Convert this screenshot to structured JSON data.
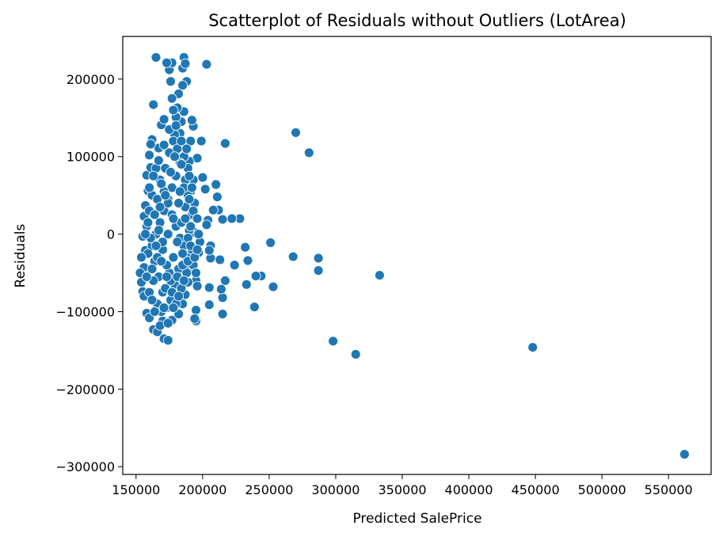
{
  "chart_data": {
    "type": "scatter",
    "title": "Scatterplot of Residuals without Outliers (LotArea)",
    "xlabel": "Predicted SalePrice",
    "ylabel": "Residuals",
    "xlim": [
      140000,
      582000
    ],
    "ylim": [
      -310000,
      255000
    ],
    "xticks": [
      150000,
      200000,
      250000,
      300000,
      350000,
      400000,
      450000,
      500000,
      550000
    ],
    "yticks": [
      -300000,
      -200000,
      -100000,
      0,
      100000,
      200000
    ],
    "xtick_labels": [
      "150000",
      "200000",
      "250000",
      "300000",
      "350000",
      "400000",
      "450000",
      "500000",
      "550000"
    ],
    "ytick_labels": [
      "−300000",
      "−200000",
      "−100000",
      "0",
      "100000",
      "200000"
    ],
    "grid": false,
    "point_color": "#1f77b4",
    "point_edge_color": "#ffffff",
    "points": [
      [
        562000,
        -284000
      ],
      [
        448000,
        -146000
      ],
      [
        333000,
        -53000
      ],
      [
        315000,
        -155000
      ],
      [
        298000,
        -138000
      ],
      [
        287000,
        -31000
      ],
      [
        287000,
        -47000
      ],
      [
        280000,
        105000
      ],
      [
        270000,
        131000
      ],
      [
        268000,
        -29000
      ],
      [
        253000,
        -68000
      ],
      [
        251000,
        -11000
      ],
      [
        244000,
        -54000
      ],
      [
        240000,
        -54000
      ],
      [
        239000,
        -94000
      ],
      [
        234000,
        -34000
      ],
      [
        233000,
        -65000
      ],
      [
        232000,
        -17000
      ],
      [
        228000,
        20000
      ],
      [
        222000,
        20000
      ],
      [
        224000,
        -40000
      ],
      [
        217000,
        117000
      ],
      [
        217000,
        -60000
      ],
      [
        215000,
        19000
      ],
      [
        215000,
        -82000
      ],
      [
        215000,
        -103000
      ],
      [
        214000,
        -71000
      ],
      [
        213000,
        -33000
      ],
      [
        212000,
        31000
      ],
      [
        211000,
        48000
      ],
      [
        210000,
        64000
      ],
      [
        208000,
        31000
      ],
      [
        206000,
        -15000
      ],
      [
        206000,
        -31000
      ],
      [
        205000,
        -21000
      ],
      [
        205000,
        -91000
      ],
      [
        205000,
        -69000
      ],
      [
        204000,
        18000
      ],
      [
        203000,
        12000
      ],
      [
        203000,
        219000
      ],
      [
        202000,
        58000
      ],
      [
        200000,
        73000
      ],
      [
        199000,
        120000
      ],
      [
        198000,
        -10000
      ],
      [
        197000,
        -24000
      ],
      [
        196000,
        98000
      ],
      [
        195000,
        -60000
      ],
      [
        195000,
        -98000
      ],
      [
        195000,
        -112000
      ],
      [
        194000,
        -109000
      ],
      [
        196000,
        -67000
      ],
      [
        193000,
        139000
      ],
      [
        194000,
        2000
      ],
      [
        192000,
        147000
      ],
      [
        190000,
        94000
      ],
      [
        191000,
        120000
      ],
      [
        188000,
        197000
      ],
      [
        186000,
        228000
      ],
      [
        185000,
        214000
      ],
      [
        187000,
        220000
      ],
      [
        185000,
        192000
      ],
      [
        186000,
        158000
      ],
      [
        184000,
        145000
      ],
      [
        183000,
        130000
      ],
      [
        182000,
        181000
      ],
      [
        181000,
        163000
      ],
      [
        180000,
        151000
      ],
      [
        179000,
        128000
      ],
      [
        178000,
        160000
      ],
      [
        177000,
        175000
      ],
      [
        176000,
        197000
      ],
      [
        175000,
        212000
      ],
      [
        177000,
        221000
      ],
      [
        173000,
        221000
      ],
      [
        169000,
        141000
      ],
      [
        171000,
        148000
      ],
      [
        167000,
        111000
      ],
      [
        163000,
        167000
      ],
      [
        162000,
        122000
      ],
      [
        161000,
        116000
      ],
      [
        165000,
        228000
      ],
      [
        160000,
        102000
      ],
      [
        158000,
        76000
      ],
      [
        159000,
        56000
      ],
      [
        161000,
        86000
      ],
      [
        157000,
        37000
      ],
      [
        156000,
        23000
      ],
      [
        158000,
        10000
      ],
      [
        155000,
        -3000
      ],
      [
        157000,
        -21000
      ],
      [
        156000,
        -43000
      ],
      [
        154000,
        -62000
      ],
      [
        155000,
        -74000
      ],
      [
        158000,
        -102000
      ],
      [
        160000,
        -108000
      ],
      [
        163000,
        -123000
      ],
      [
        166000,
        -126000
      ],
      [
        171000,
        -135000
      ],
      [
        174000,
        -137000
      ],
      [
        170000,
        -112000
      ],
      [
        177000,
        -111000
      ],
      [
        182000,
        -103000
      ],
      [
        185000,
        -90000
      ],
      [
        187000,
        -78000
      ],
      [
        189000,
        -62000
      ],
      [
        190000,
        -46000
      ],
      [
        188000,
        -30000
      ],
      [
        186000,
        -15000
      ],
      [
        190000,
        5000
      ],
      [
        192000,
        25000
      ],
      [
        194000,
        40000
      ],
      [
        191000,
        55000
      ],
      [
        193000,
        70000
      ],
      [
        189000,
        85000
      ],
      [
        186000,
        100000
      ],
      [
        183000,
        92000
      ],
      [
        180000,
        75000
      ],
      [
        177000,
        60000
      ],
      [
        174000,
        45000
      ],
      [
        171000,
        30000
      ],
      [
        168000,
        15000
      ],
      [
        165000,
        0
      ],
      [
        162000,
        -15000
      ],
      [
        164000,
        -35000
      ],
      [
        167000,
        -55000
      ],
      [
        170000,
        -75000
      ],
      [
        173000,
        -95000
      ],
      [
        176000,
        -85000
      ],
      [
        179000,
        -65000
      ],
      [
        182000,
        -45000
      ],
      [
        185000,
        -25000
      ],
      [
        183000,
        -5000
      ],
      [
        180000,
        10000
      ],
      [
        177000,
        25000
      ],
      [
        174000,
        40000
      ],
      [
        171000,
        55000
      ],
      [
        168000,
        70000
      ],
      [
        165000,
        85000
      ],
      [
        162000,
        50000
      ],
      [
        160000,
        30000
      ],
      [
        159000,
        15000
      ],
      [
        161000,
        -5000
      ],
      [
        163000,
        -60000
      ],
      [
        166000,
        -90000
      ],
      [
        169000,
        -100000
      ],
      [
        172000,
        -70000
      ],
      [
        175000,
        -50000
      ],
      [
        178000,
        -30000
      ],
      [
        181000,
        -10000
      ],
      [
        184000,
        15000
      ],
      [
        187000,
        35000
      ],
      [
        189000,
        50000
      ],
      [
        191000,
        10000
      ],
      [
        188000,
        -50000
      ],
      [
        184000,
        -70000
      ],
      [
        180000,
        -90000
      ],
      [
        176000,
        -60000
      ],
      [
        173000,
        -40000
      ],
      [
        170000,
        -20000
      ],
      [
        167000,
        5000
      ],
      [
        164000,
        25000
      ],
      [
        166000,
        45000
      ],
      [
        169000,
        65000
      ],
      [
        172000,
        85000
      ],
      [
        175000,
        105000
      ],
      [
        178000,
        120000
      ],
      [
        181000,
        110000
      ],
      [
        184000,
        90000
      ],
      [
        187000,
        70000
      ],
      [
        190000,
        45000
      ],
      [
        192000,
        -20000
      ],
      [
        193000,
        -40000
      ],
      [
        186000,
        60000
      ],
      [
        182000,
        40000
      ],
      [
        178000,
        20000
      ],
      [
        174000,
        0
      ],
      [
        170000,
        -10000
      ],
      [
        166000,
        -30000
      ],
      [
        162000,
        -45000
      ],
      [
        159000,
        -25000
      ],
      [
        157000,
        0
      ],
      [
        160000,
        60000
      ],
      [
        163000,
        75000
      ],
      [
        167000,
        95000
      ],
      [
        171000,
        115000
      ],
      [
        175000,
        135000
      ],
      [
        179000,
        100000
      ],
      [
        183000,
        55000
      ],
      [
        187000,
        20000
      ],
      [
        189000,
        -5000
      ],
      [
        185000,
        -40000
      ],
      [
        181000,
        -55000
      ],
      [
        177000,
        -75000
      ],
      [
        173000,
        -55000
      ],
      [
        169000,
        -35000
      ],
      [
        165000,
        -15000
      ],
      [
        168000,
        35000
      ],
      [
        172000,
        50000
      ],
      [
        176000,
        80000
      ],
      [
        180000,
        140000
      ],
      [
        184000,
        120000
      ],
      [
        188000,
        110000
      ],
      [
        190000,
        75000
      ],
      [
        192000,
        60000
      ],
      [
        193000,
        30000
      ],
      [
        154000,
        -30000
      ],
      [
        153000,
        -50000
      ],
      [
        156000,
        -80000
      ],
      [
        158000,
        -55000
      ],
      [
        160000,
        -75000
      ],
      [
        162000,
        -85000
      ],
      [
        164000,
        -100000
      ],
      [
        168000,
        -118000
      ],
      [
        171000,
        -95000
      ],
      [
        174000,
        -115000
      ],
      [
        178000,
        -95000
      ],
      [
        182000,
        -80000
      ],
      [
        186000,
        -60000
      ],
      [
        189000,
        -35000
      ],
      [
        191000,
        -15000
      ],
      [
        194000,
        -30000
      ],
      [
        195000,
        -50000
      ],
      [
        196000,
        -20000
      ],
      [
        197000,
        0
      ],
      [
        196000,
        20000
      ]
    ]
  }
}
